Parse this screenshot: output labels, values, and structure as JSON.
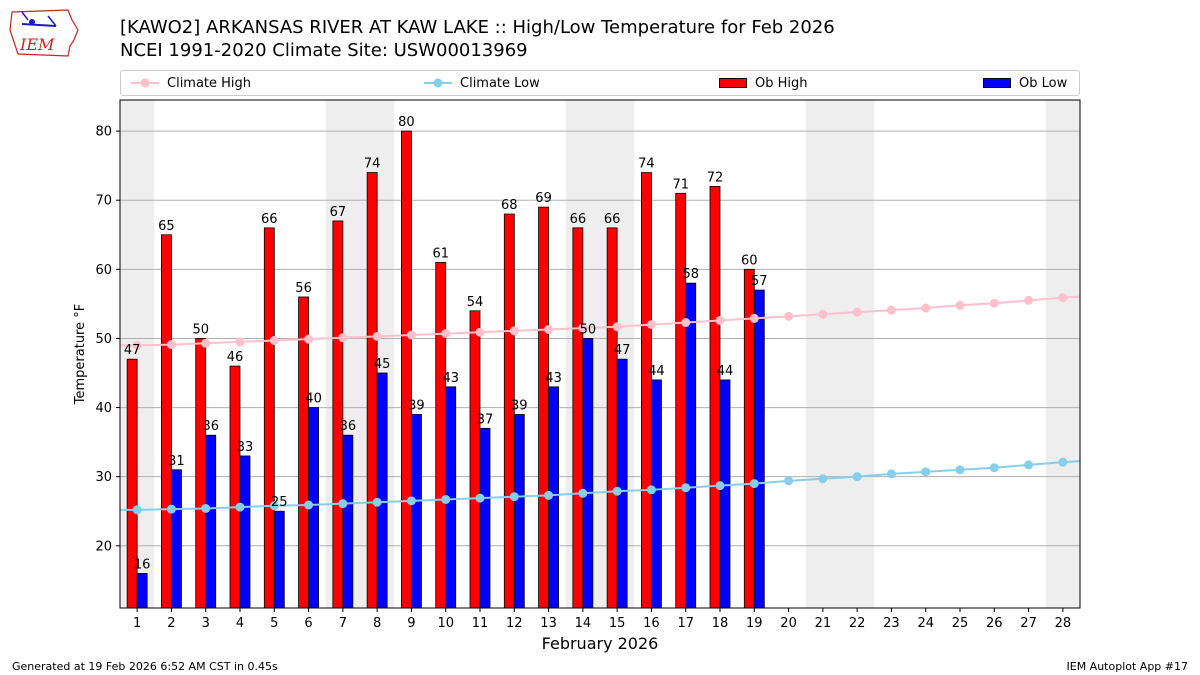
{
  "header": {
    "title_line1": "[KAWO2] ARKANSAS RIVER  AT KAW LAKE :: High/Low Temperature for Feb 2026",
    "title_line2": "NCEI 1991-2020 Climate Site: USW00013969"
  },
  "logo": {
    "text": "IEM",
    "icon": "iowa-state-logo-icon"
  },
  "footer": {
    "left": "Generated at 19 Feb 2026 6:52 AM CST in 0.45s",
    "right": "IEM Autoplot App #17"
  },
  "colors": {
    "ob_high": "#ff0000",
    "ob_low": "#0000ff",
    "climate_high": "#ffc0cb",
    "climate_low": "#87ceeb",
    "weekend_shade": "#eeeeee",
    "grid": "#b0b0b0"
  },
  "chart_data": {
    "type": "bar",
    "title": "[KAWO2] ARKANSAS RIVER  AT KAW LAKE :: High/Low Temperature for Feb 2026",
    "subtitle": "NCEI 1991-2020 Climate Site: USW00013969",
    "xlabel": "February 2026",
    "ylabel": "Temperature °F",
    "xlim": [
      0.5,
      28.5
    ],
    "ylim": [
      11,
      84.5
    ],
    "yticks": [
      20,
      30,
      40,
      50,
      60,
      70,
      80
    ],
    "grid": "horizontal",
    "legend_position": "top",
    "categories": [
      1,
      2,
      3,
      4,
      5,
      6,
      7,
      8,
      9,
      10,
      11,
      12,
      13,
      14,
      15,
      16,
      17,
      18,
      19,
      20,
      21,
      22,
      23,
      24,
      25,
      26,
      27,
      28
    ],
    "weekend_shading": [
      [
        0.5,
        1.5
      ],
      [
        6.5,
        8.5
      ],
      [
        13.5,
        15.5
      ],
      [
        20.5,
        22.5
      ],
      [
        27.5,
        28.5
      ]
    ],
    "series": [
      {
        "name": "Climate High",
        "kind": "line",
        "values": [
          49.0,
          49.1,
          49.3,
          49.5,
          49.7,
          49.9,
          50.1,
          50.3,
          50.5,
          50.7,
          50.9,
          51.1,
          51.3,
          51.5,
          51.7,
          52.0,
          52.3,
          52.6,
          52.9,
          53.2,
          53.5,
          53.8,
          54.1,
          54.4,
          54.8,
          55.1,
          55.5,
          55.9
        ]
      },
      {
        "name": "Climate Low",
        "kind": "line",
        "values": [
          25.2,
          25.3,
          25.4,
          25.6,
          25.8,
          25.9,
          26.1,
          26.3,
          26.5,
          26.7,
          26.9,
          27.1,
          27.3,
          27.6,
          27.9,
          28.1,
          28.4,
          28.7,
          29.0,
          29.4,
          29.7,
          30.0,
          30.4,
          30.7,
          31.0,
          31.3,
          31.7,
          32.1
        ]
      },
      {
        "name": "Ob High",
        "kind": "bar",
        "values": [
          47,
          65,
          50,
          46,
          66,
          56,
          67,
          74,
          80,
          61,
          54,
          68,
          69,
          66,
          66,
          74,
          71,
          72,
          60,
          null,
          null,
          null,
          null,
          null,
          null,
          null,
          null,
          null
        ]
      },
      {
        "name": "Ob Low",
        "kind": "bar",
        "values": [
          16,
          31,
          36,
          33,
          25,
          40,
          36,
          45,
          39,
          43,
          37,
          39,
          43,
          50,
          47,
          44,
          58,
          44,
          57,
          null,
          null,
          null,
          null,
          null,
          null,
          null,
          null,
          null
        ]
      }
    ]
  }
}
